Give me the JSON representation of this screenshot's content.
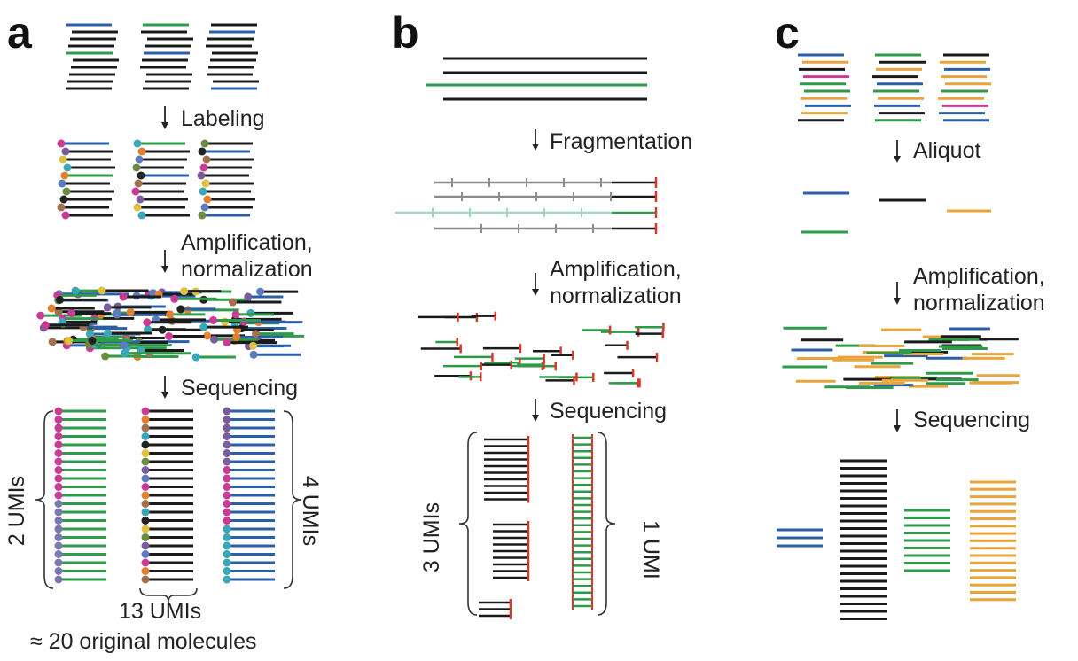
{
  "colors": {
    "black": "#1a1a1a",
    "green": "#2e9a4a",
    "blue": "#2b5fa8",
    "orange": "#e9a43a",
    "magenta": "#c83c96",
    "gray": "#8c8c8c",
    "lightgreen": "#9fd6c2",
    "red": "#d23a2a"
  },
  "panels": {
    "a": {
      "label": "a",
      "steps": {
        "labeling": "Labeling",
        "amplification": "Amplification,\nnormalization",
        "sequencing": "Sequencing"
      },
      "counts": {
        "left": "2 UMIs",
        "middle": "13 UMIs",
        "right": "4 UMIs"
      },
      "total": "≈ 20 original molecules"
    },
    "b": {
      "label": "b",
      "steps": {
        "fragmentation": "Fragmentation",
        "amplification": "Amplification,\nnormalization",
        "sequencing": "Sequencing"
      },
      "counts": {
        "left": "3 UMIs",
        "right": "1 UMI"
      }
    },
    "c": {
      "label": "c",
      "steps": {
        "aliquot": "Aliquot",
        "amplification": "Amplification,\nnormalization",
        "sequencing": "Sequencing"
      }
    }
  }
}
